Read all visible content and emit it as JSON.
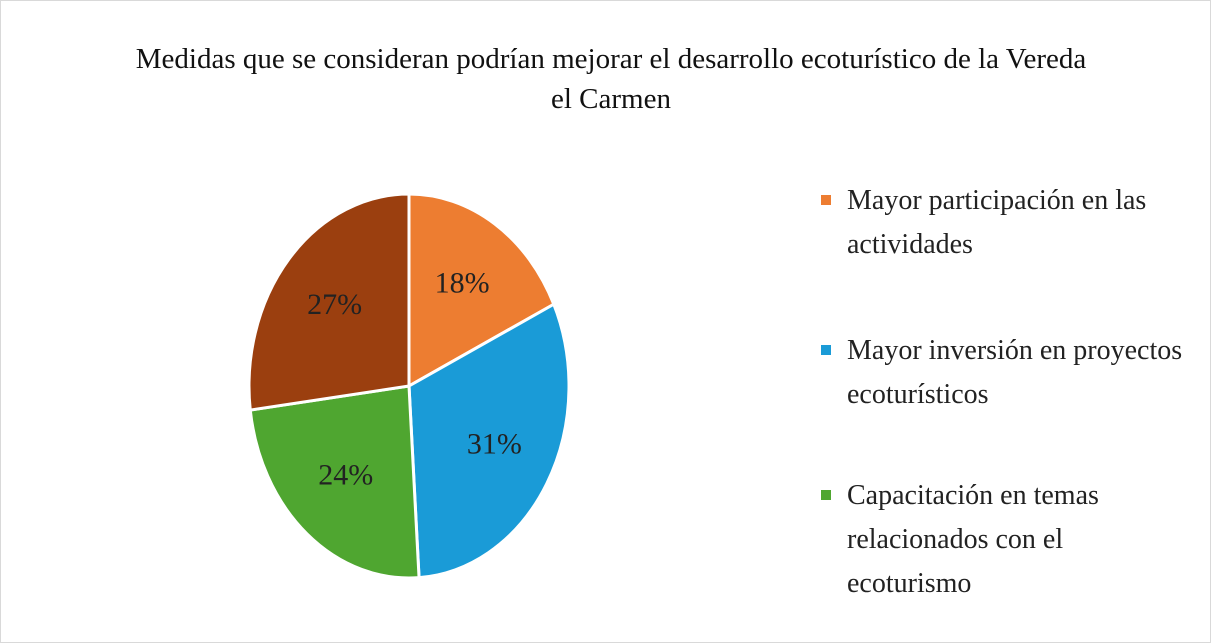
{
  "chart_data": {
    "type": "pie",
    "title": "Medidas que se consideran podrían mejorar el desarrollo ecoturístico de la Vereda el Carmen",
    "categories": [
      "Mayor participación en las actividades",
      "Mayor inversión en proyectos ecoturísticos",
      "Capacitación en temas relacionados con el ecoturismo",
      null
    ],
    "values": [
      18,
      31,
      24,
      27
    ],
    "value_labels": [
      "18%",
      "31%",
      "24%",
      "27%"
    ],
    "colors": [
      "#ED7D31",
      "#1A9BD7",
      "#4FA630",
      "#9B3F0F"
    ],
    "legend": "right"
  }
}
